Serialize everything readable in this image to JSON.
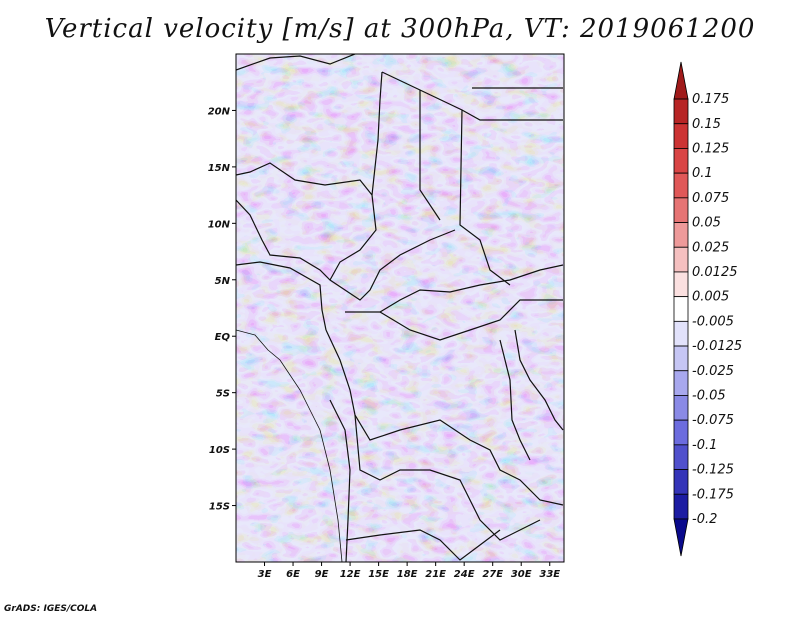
{
  "title": "Vertical velocity [m/s] at 300hPa, VT: 2019061200",
  "credit": "GrADS: IGES/COLA",
  "map": {
    "lon_range": [
      0,
      34.5
    ],
    "lat_range": [
      -20,
      25
    ],
    "lon_ticks": [
      {
        "value": 3,
        "label": "3E"
      },
      {
        "value": 6,
        "label": "6E"
      },
      {
        "value": 9,
        "label": "9E"
      },
      {
        "value": 12,
        "label": "12E"
      },
      {
        "value": 15,
        "label": "15E"
      },
      {
        "value": 18,
        "label": "18E"
      },
      {
        "value": 21,
        "label": "21E"
      },
      {
        "value": 24,
        "label": "24E"
      },
      {
        "value": 27,
        "label": "27E"
      },
      {
        "value": 30,
        "label": "30E"
      },
      {
        "value": 33,
        "label": "33E"
      }
    ],
    "lat_ticks": [
      {
        "value": 20,
        "label": "20N"
      },
      {
        "value": 15,
        "label": "15N"
      },
      {
        "value": 10,
        "label": "10N"
      },
      {
        "value": 5,
        "label": "5N"
      },
      {
        "value": 0,
        "label": "EQ"
      },
      {
        "value": -5,
        "label": "5S"
      },
      {
        "value": -10,
        "label": "10S"
      },
      {
        "value": -15,
        "label": "15S"
      }
    ]
  },
  "colorbar": {
    "labels": [
      "0.175",
      "0.15",
      "0.125",
      "0.1",
      "0.075",
      "0.05",
      "0.025",
      "0.0125",
      "0.005",
      "-0.005",
      "-0.0125",
      "-0.025",
      "-0.05",
      "-0.075",
      "-0.1",
      "-0.125",
      "-0.175",
      "-0.2"
    ],
    "colors": [
      "#a01a1a",
      "#b72525",
      "#cc3333",
      "#d94545",
      "#e05858",
      "#e67474",
      "#ee9a9a",
      "#f5c0c0",
      "#fbe0e0",
      "#ffffff",
      "#e2e2fb",
      "#c6c6f4",
      "#a8a8ee",
      "#8a8ae6",
      "#6c6cde",
      "#5050cc",
      "#3434b8",
      "#1c1ca2",
      "#0a0a8c"
    ]
  }
}
